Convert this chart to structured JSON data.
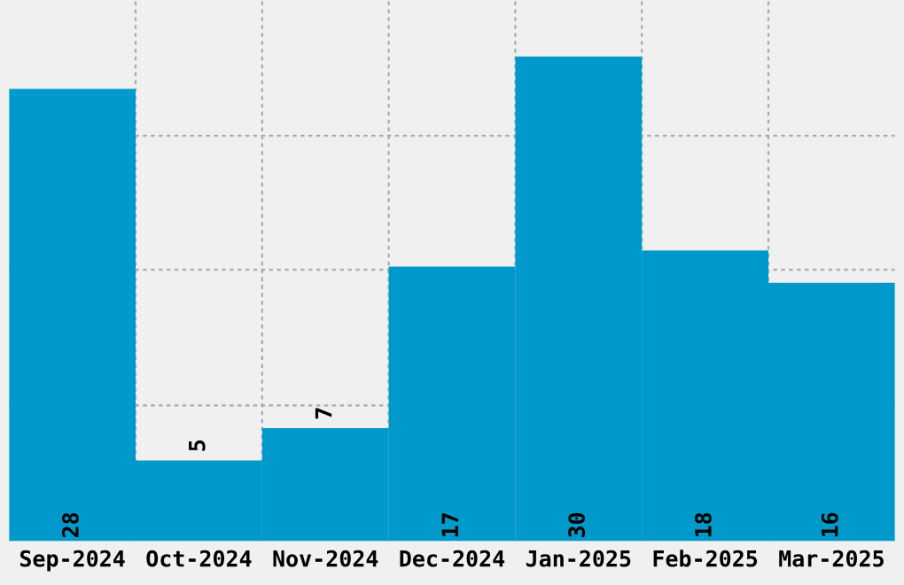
{
  "chart_data": {
    "type": "bar",
    "categories": [
      "Sep-2024",
      "Oct-2024",
      "Nov-2024",
      "Dec-2024",
      "Jan-2025",
      "Feb-2025",
      "Mar-2025"
    ],
    "values": [
      28,
      5,
      7,
      17,
      30,
      18,
      16
    ],
    "color": "#0099cc",
    "ylim": [
      0,
      33.5
    ],
    "yticks": [
      {
        "value": 8.4,
        "label": null
      },
      {
        "value": 16.8,
        "label": null
      },
      {
        "value": 25.1,
        "label": null
      }
    ],
    "tick_labels": "x",
    "grid": true,
    "data_labels": true
  }
}
